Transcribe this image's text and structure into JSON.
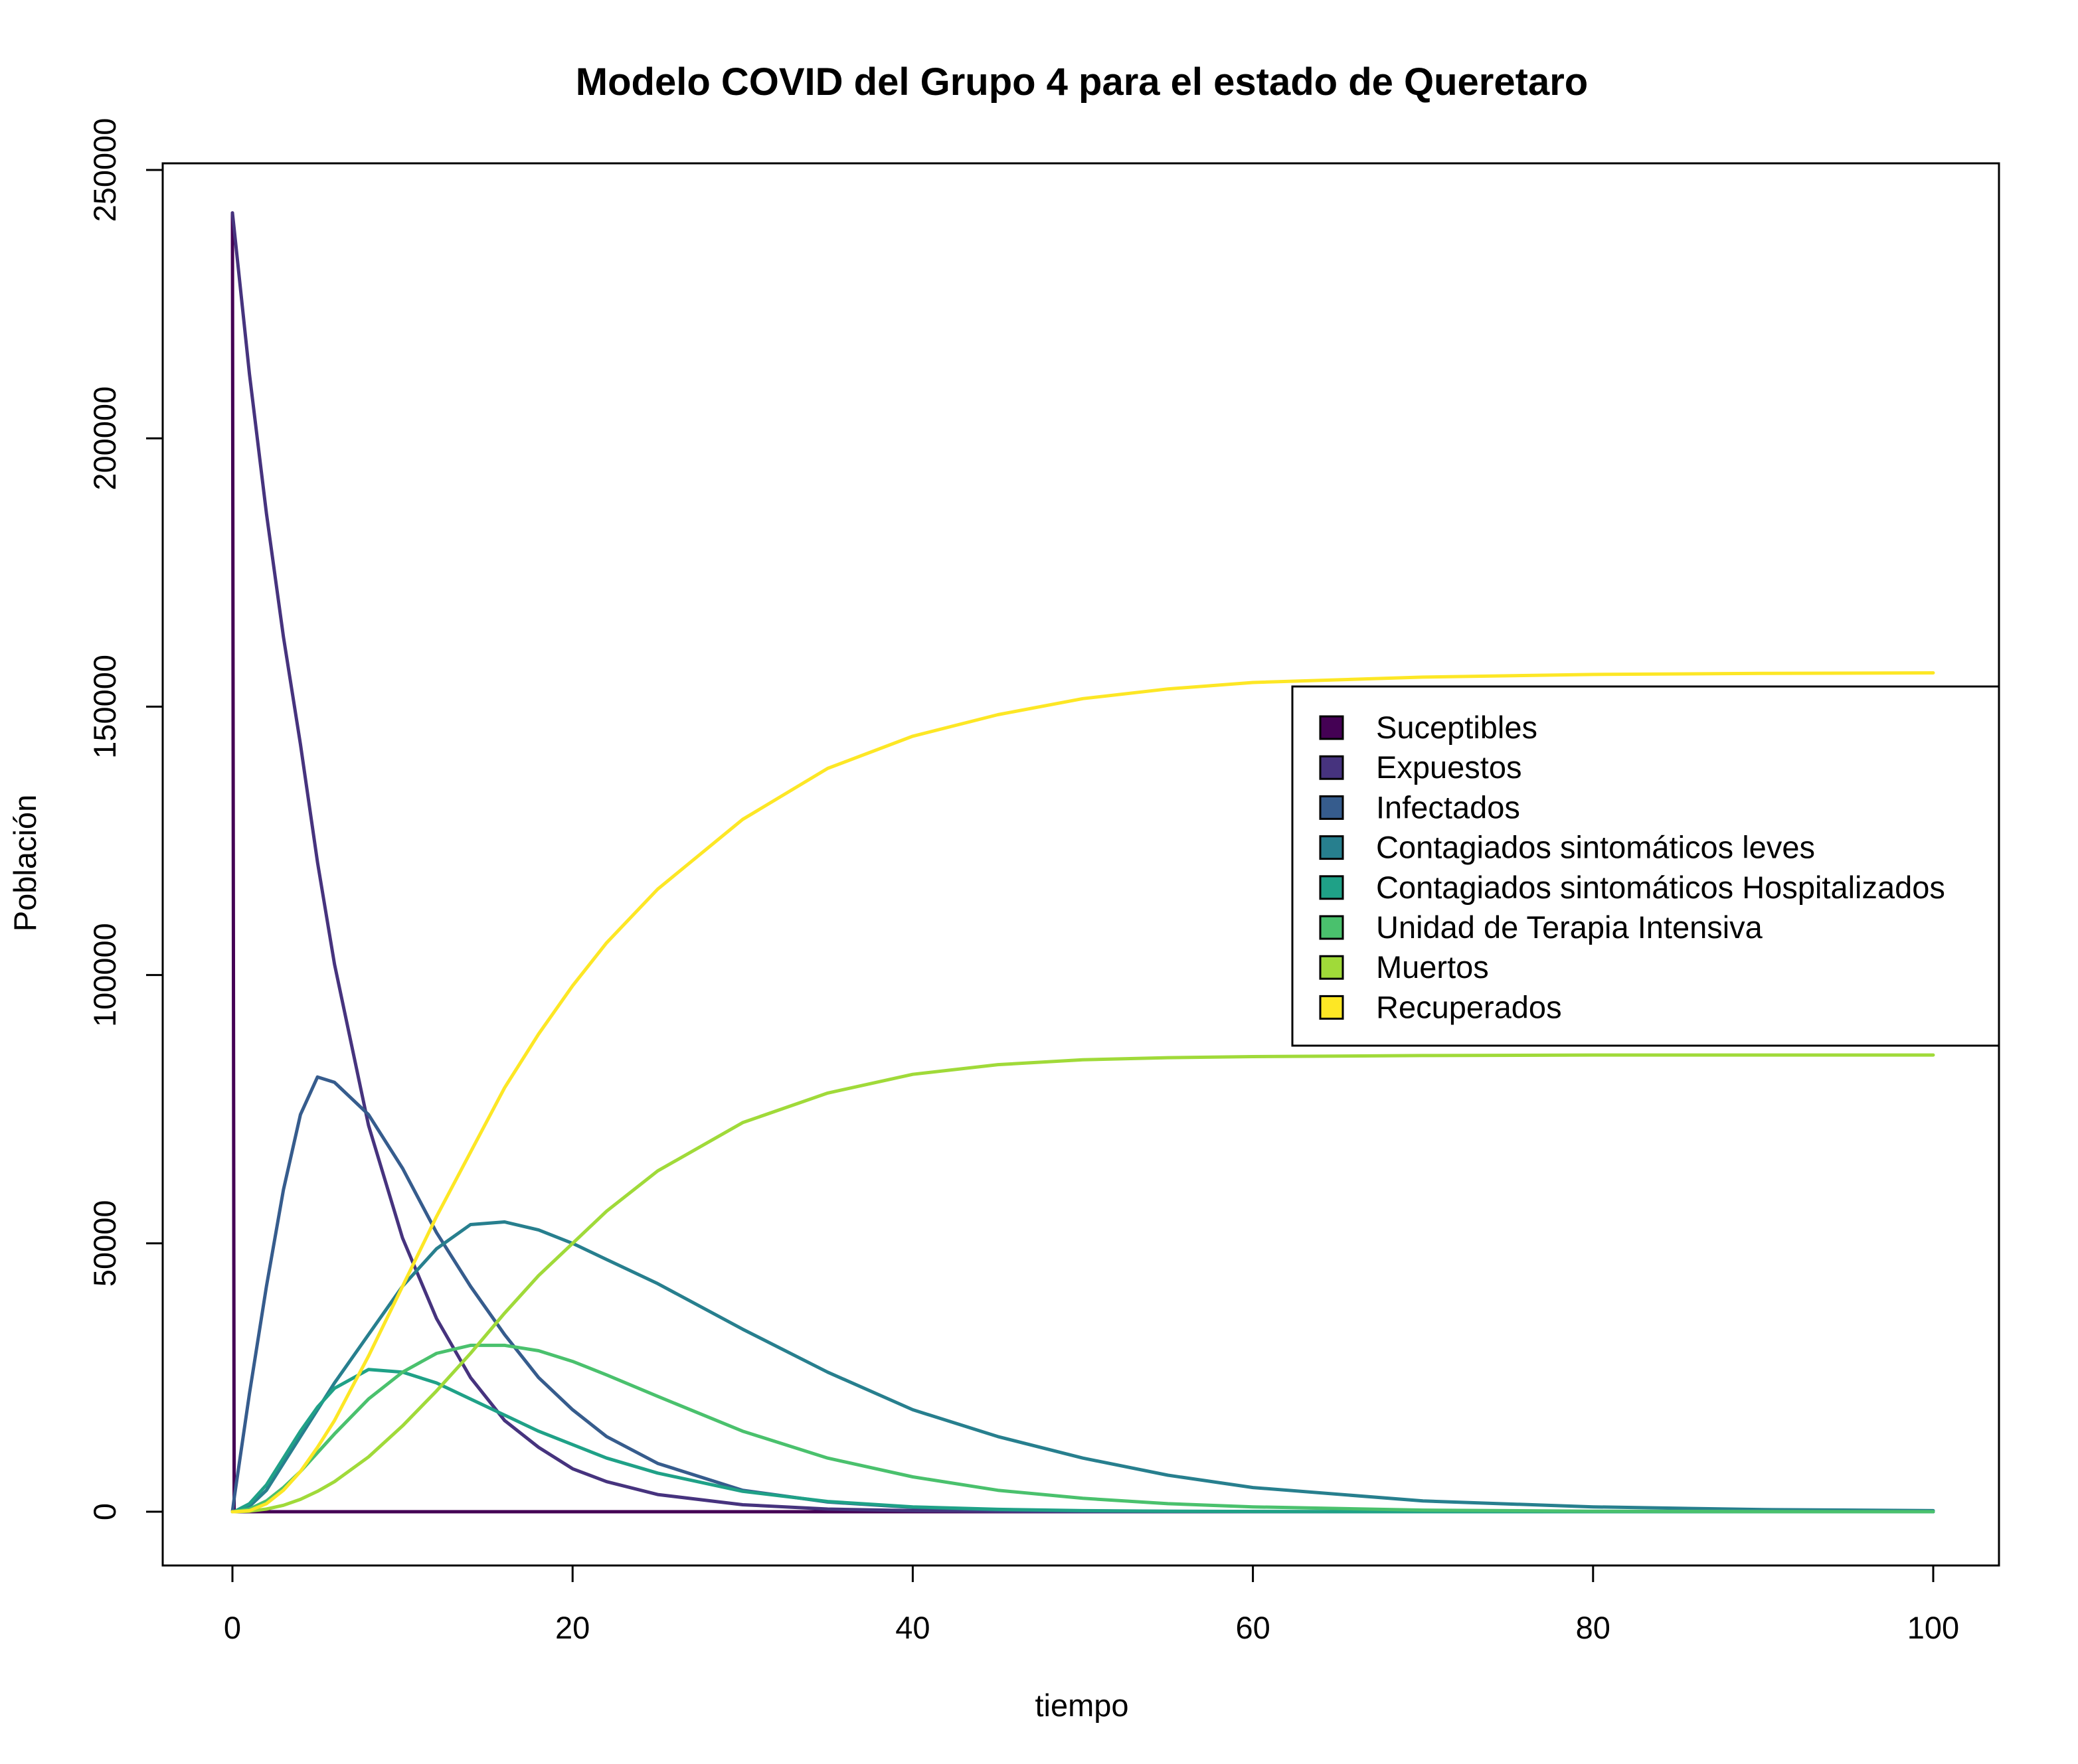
{
  "chart_data": {
    "type": "line",
    "title": "Modelo COVID del Grupo 4 para el estado de Queretaro",
    "xlabel": "tiempo",
    "ylabel": "Población",
    "xlim": [
      0,
      100
    ],
    "ylim": [
      0,
      250000
    ],
    "xticks": [
      0,
      20,
      40,
      60,
      80,
      100
    ],
    "yticks": [
      0,
      50000,
      100000,
      150000,
      200000,
      250000
    ],
    "grid": false,
    "legend_position": "right",
    "x": [
      0,
      0.1,
      1,
      2,
      3,
      4,
      5,
      6,
      8,
      10,
      12,
      14,
      16,
      18,
      20,
      22,
      25,
      30,
      35,
      40,
      45,
      50,
      55,
      60,
      70,
      80,
      90,
      100
    ],
    "series": [
      {
        "name": "Suceptibles",
        "color": "#440154",
        "values": [
          242000,
          0,
          0,
          0,
          0,
          0,
          0,
          0,
          0,
          0,
          0,
          0,
          0,
          0,
          0,
          0,
          0,
          0,
          0,
          0,
          0,
          0,
          0,
          0,
          0,
          0,
          0,
          0
        ]
      },
      {
        "name": "Expuestos",
        "color": "#46337e",
        "values": [
          242000,
          239000,
          212000,
          186000,
          163000,
          143000,
          121000,
          102000,
          72000,
          51000,
          36000,
          25000,
          17000,
          12000,
          8000,
          5600,
          3200,
          1300,
          500,
          200,
          80,
          30,
          10,
          0,
          0,
          0,
          0,
          0
        ]
      },
      {
        "name": "Infectados",
        "color": "#365c8d",
        "values": [
          0,
          2500,
          22000,
          42000,
          60000,
          74000,
          81000,
          80000,
          74000,
          64000,
          52000,
          42000,
          33000,
          25000,
          19000,
          14000,
          9000,
          4000,
          1800,
          800,
          350,
          150,
          70,
          30,
          0,
          0,
          0,
          0
        ]
      },
      {
        "name": "Contagiados sintomáticos leves",
        "color": "#277f8e",
        "values": [
          0,
          0,
          1000,
          4000,
          9000,
          14000,
          19000,
          24000,
          33000,
          42000,
          49000,
          53500,
          54000,
          52500,
          50000,
          47000,
          42500,
          34000,
          26000,
          19000,
          14000,
          10000,
          6800,
          4500,
          2000,
          900,
          400,
          200
        ]
      },
      {
        "name": "Contagiados sintomáticos Hospitalizados",
        "color": "#1fa187",
        "values": [
          0,
          0,
          1500,
          5000,
          10000,
          15000,
          19500,
          23000,
          26500,
          26000,
          24000,
          21000,
          18000,
          15000,
          12500,
          10000,
          7200,
          3800,
          1900,
          900,
          450,
          200,
          100,
          50,
          0,
          0,
          0,
          0
        ]
      },
      {
        "name": "Unidad de Terapia Intensiva",
        "color": "#4ac16d",
        "values": [
          0,
          0,
          500,
          2000,
          4500,
          7500,
          11000,
          14500,
          21000,
          26000,
          29500,
          31000,
          31000,
          30000,
          28000,
          25500,
          21500,
          15000,
          10000,
          6500,
          4000,
          2500,
          1500,
          900,
          300,
          100,
          30,
          10
        ]
      },
      {
        "name": "Muertos",
        "color": "#a0da39",
        "values": [
          0,
          0,
          100,
          500,
          1200,
          2300,
          3800,
          5600,
          10200,
          16000,
          22500,
          29500,
          37000,
          44000,
          50000,
          56000,
          63500,
          72500,
          78000,
          81500,
          83300,
          84200,
          84600,
          84800,
          85000,
          85100,
          85100,
          85100
        ]
      },
      {
        "name": "Recuperados",
        "color": "#fde725",
        "values": [
          0,
          0,
          200,
          1500,
          4000,
          7500,
          12000,
          17000,
          29000,
          42000,
          55000,
          67000,
          79000,
          89000,
          98000,
          106000,
          116000,
          129000,
          138500,
          144500,
          148500,
          151500,
          153300,
          154500,
          155500,
          156000,
          156200,
          156300
        ]
      }
    ]
  }
}
